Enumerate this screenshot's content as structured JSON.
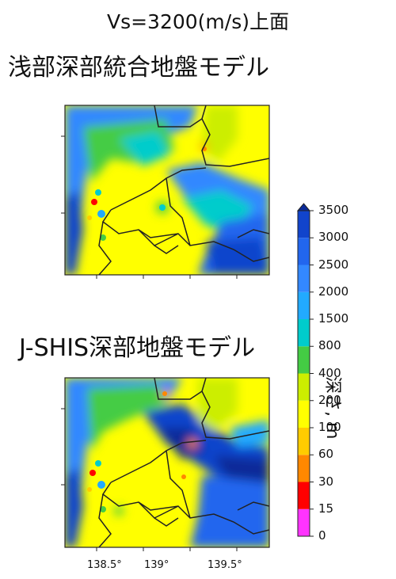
{
  "title": "Vs=3200(m/s)上面",
  "panels": [
    {
      "title": "浅部深部統合地盤モデル"
    },
    {
      "title": "J-SHIS深部地盤モデル"
    }
  ],
  "x_axis": {
    "ticks": [
      "138.5°",
      "139°",
      "139.5°"
    ]
  },
  "colorbar": {
    "title": "深さ, m",
    "levels": [
      "0",
      "15",
      "30",
      "60",
      "100",
      "200",
      "400",
      "800",
      "1500",
      "2000",
      "2500",
      "3000",
      "3500"
    ],
    "colors": [
      "#ff33ff",
      "#ff0000",
      "#ff8800",
      "#ffcc00",
      "#ffff00",
      "#ccee00",
      "#44cc44",
      "#00cccc",
      "#22aaff",
      "#3388ff",
      "#2266ee",
      "#1144cc",
      "#0a2a99"
    ]
  }
}
